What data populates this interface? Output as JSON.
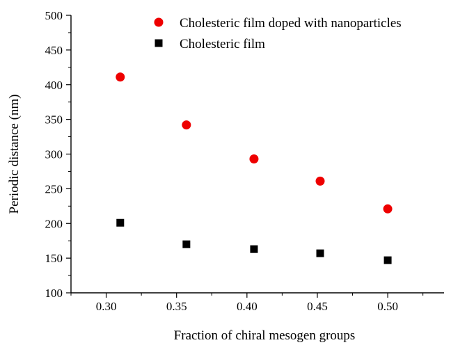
{
  "chart_data": {
    "type": "scatter",
    "title": "",
    "xlabel": "Fraction of chiral mesogen groups",
    "ylabel": "Periodic distance (nm)",
    "xlim": [
      0.275,
      0.54
    ],
    "ylim": [
      100,
      500
    ],
    "xticks": [
      "0.30",
      "0.35",
      "0.40",
      "0.45",
      "0.50"
    ],
    "yticks": [
      "100",
      "150",
      "200",
      "250",
      "300",
      "350",
      "400",
      "450",
      "500"
    ],
    "legend_position": "top-right",
    "series": [
      {
        "name": "Cholesteric film doped with nanoparticles",
        "marker": "circle",
        "color": "#ee0000",
        "x": [
          0.31,
          0.357,
          0.405,
          0.452,
          0.5
        ],
        "y": [
          411,
          342,
          293,
          261,
          221
        ]
      },
      {
        "name": "Cholesteric film",
        "marker": "square",
        "color": "#000000",
        "x": [
          0.31,
          0.357,
          0.405,
          0.452,
          0.5
        ],
        "y": [
          201,
          170,
          163,
          157,
          147
        ]
      }
    ]
  }
}
